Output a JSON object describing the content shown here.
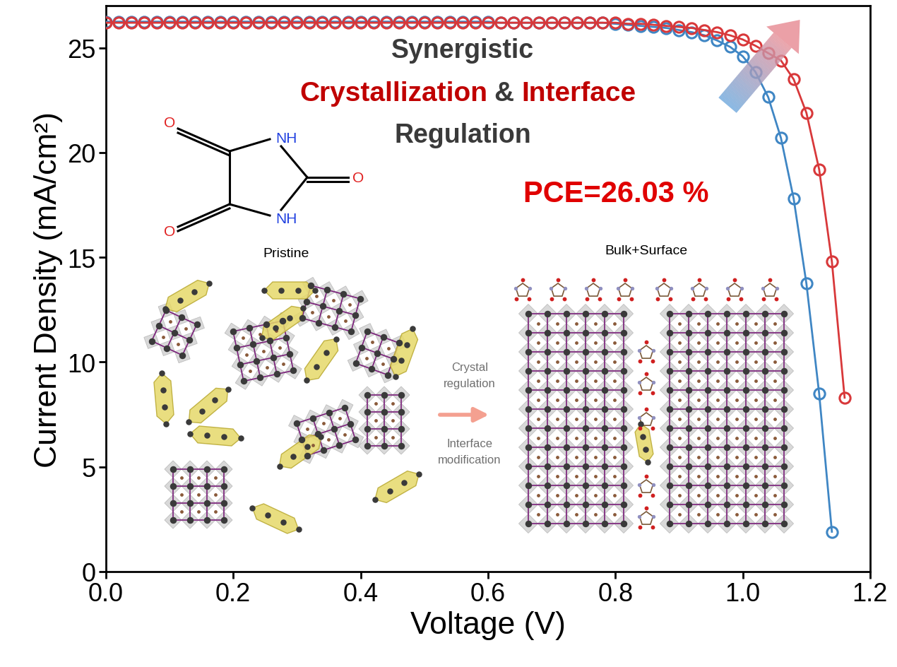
{
  "chart_data": {
    "type": "line",
    "xlabel": "Voltage (V)",
    "ylabel": "Current Density (mA/cm²)",
    "xlim": [
      0,
      1.2
    ],
    "ylim": [
      0,
      27
    ],
    "xticks": [
      {
        "value": 0,
        "label": "0.0"
      },
      {
        "value": 0.2,
        "label": "0.2"
      },
      {
        "value": 0.4,
        "label": "0.4"
      },
      {
        "value": 0.6,
        "label": "0.6"
      },
      {
        "value": 0.8,
        "label": "0.8"
      },
      {
        "value": 1,
        "label": "1.0"
      },
      {
        "value": 1.2,
        "label": "1.2"
      }
    ],
    "yticks": [
      0,
      5,
      10,
      15,
      20,
      25
    ],
    "series": [
      {
        "color": "#3f86c4",
        "marker": "o",
        "x": [
          0,
          0.02,
          0.04,
          0.06,
          0.08,
          0.1,
          0.12,
          0.14,
          0.16,
          0.18,
          0.2,
          0.22,
          0.24,
          0.26,
          0.28,
          0.3,
          0.32,
          0.34,
          0.36,
          0.38,
          0.4,
          0.42,
          0.44,
          0.46,
          0.48,
          0.5,
          0.52,
          0.54,
          0.56,
          0.58,
          0.6,
          0.62,
          0.64,
          0.66,
          0.68,
          0.7,
          0.72,
          0.74,
          0.76,
          0.78,
          0.8,
          0.82,
          0.84,
          0.86,
          0.88,
          0.9,
          0.92,
          0.94,
          0.96,
          0.98,
          1.0,
          1.02,
          1.04,
          1.06,
          1.08,
          1.1,
          1.12,
          1.14
        ],
        "values": [
          26.25,
          26.25,
          26.25,
          26.25,
          26.25,
          26.25,
          26.25,
          26.25,
          26.25,
          26.25,
          26.25,
          26.25,
          26.25,
          26.25,
          26.25,
          26.25,
          26.25,
          26.25,
          26.25,
          26.25,
          26.25,
          26.25,
          26.25,
          26.25,
          26.25,
          26.25,
          26.25,
          26.25,
          26.25,
          26.25,
          26.25,
          26.2,
          26.2,
          26.2,
          26.2,
          26.2,
          26.2,
          26.2,
          26.2,
          26.2,
          26.15,
          26.1,
          26.05,
          26.0,
          25.95,
          25.85,
          25.75,
          25.6,
          25.35,
          25.05,
          24.6,
          23.85,
          22.65,
          20.7,
          17.8,
          13.75,
          8.5,
          1.9
        ]
      },
      {
        "color": "#d8383a",
        "marker": "o",
        "x": [
          0,
          0.02,
          0.04,
          0.06,
          0.08,
          0.1,
          0.12,
          0.14,
          0.16,
          0.18,
          0.2,
          0.22,
          0.24,
          0.26,
          0.28,
          0.3,
          0.32,
          0.34,
          0.36,
          0.38,
          0.4,
          0.42,
          0.44,
          0.46,
          0.48,
          0.5,
          0.52,
          0.54,
          0.56,
          0.58,
          0.6,
          0.62,
          0.64,
          0.66,
          0.68,
          0.7,
          0.72,
          0.74,
          0.76,
          0.78,
          0.8,
          0.82,
          0.84,
          0.86,
          0.88,
          0.9,
          0.92,
          0.94,
          0.96,
          0.98,
          1.0,
          1.02,
          1.04,
          1.06,
          1.08,
          1.1,
          1.12,
          1.14,
          1.16
        ],
        "values": [
          26.2,
          26.2,
          26.2,
          26.2,
          26.2,
          26.2,
          26.2,
          26.2,
          26.2,
          26.2,
          26.2,
          26.2,
          26.2,
          26.2,
          26.2,
          26.2,
          26.2,
          26.2,
          26.2,
          26.2,
          26.2,
          26.2,
          26.2,
          26.2,
          26.2,
          26.2,
          26.2,
          26.2,
          26.2,
          26.2,
          26.2,
          26.2,
          26.2,
          26.2,
          26.2,
          26.2,
          26.2,
          26.2,
          26.2,
          26.2,
          26.2,
          26.15,
          26.15,
          26.1,
          26.05,
          26.0,
          25.95,
          25.85,
          25.75,
          25.6,
          25.4,
          25.1,
          24.75,
          24.4,
          23.5,
          21.9,
          19.2,
          14.8,
          8.3
        ]
      }
    ],
    "annotations": [
      {
        "text": "Synergistic",
        "color": "#3a3a3a"
      },
      {
        "text": "Crystallization",
        "color": "#c00000"
      },
      {
        "text": "&",
        "color": "#3a3a3a"
      },
      {
        "text": "Interface",
        "color": "#c00000"
      },
      {
        "text": "Regulation",
        "color": "#3a3a3a"
      },
      {
        "text": "PCE=26.03 %",
        "color": "#e00000"
      },
      {
        "text": "O",
        "color": "#e02020"
      },
      {
        "text": "NH",
        "color": "#2040e0"
      },
      {
        "text": "O",
        "color": "#e02020"
      },
      {
        "text": "NH",
        "color": "#2040e0"
      },
      {
        "text": "O",
        "color": "#e02020"
      },
      {
        "text": "Pristine",
        "color": "#000000"
      },
      {
        "text": "Bulk+Surface",
        "color": "#000000"
      },
      {
        "text": "Crystal\nregulation",
        "color": "#707070"
      },
      {
        "text": "Interface\nmodification",
        "color": "#707070"
      }
    ]
  }
}
